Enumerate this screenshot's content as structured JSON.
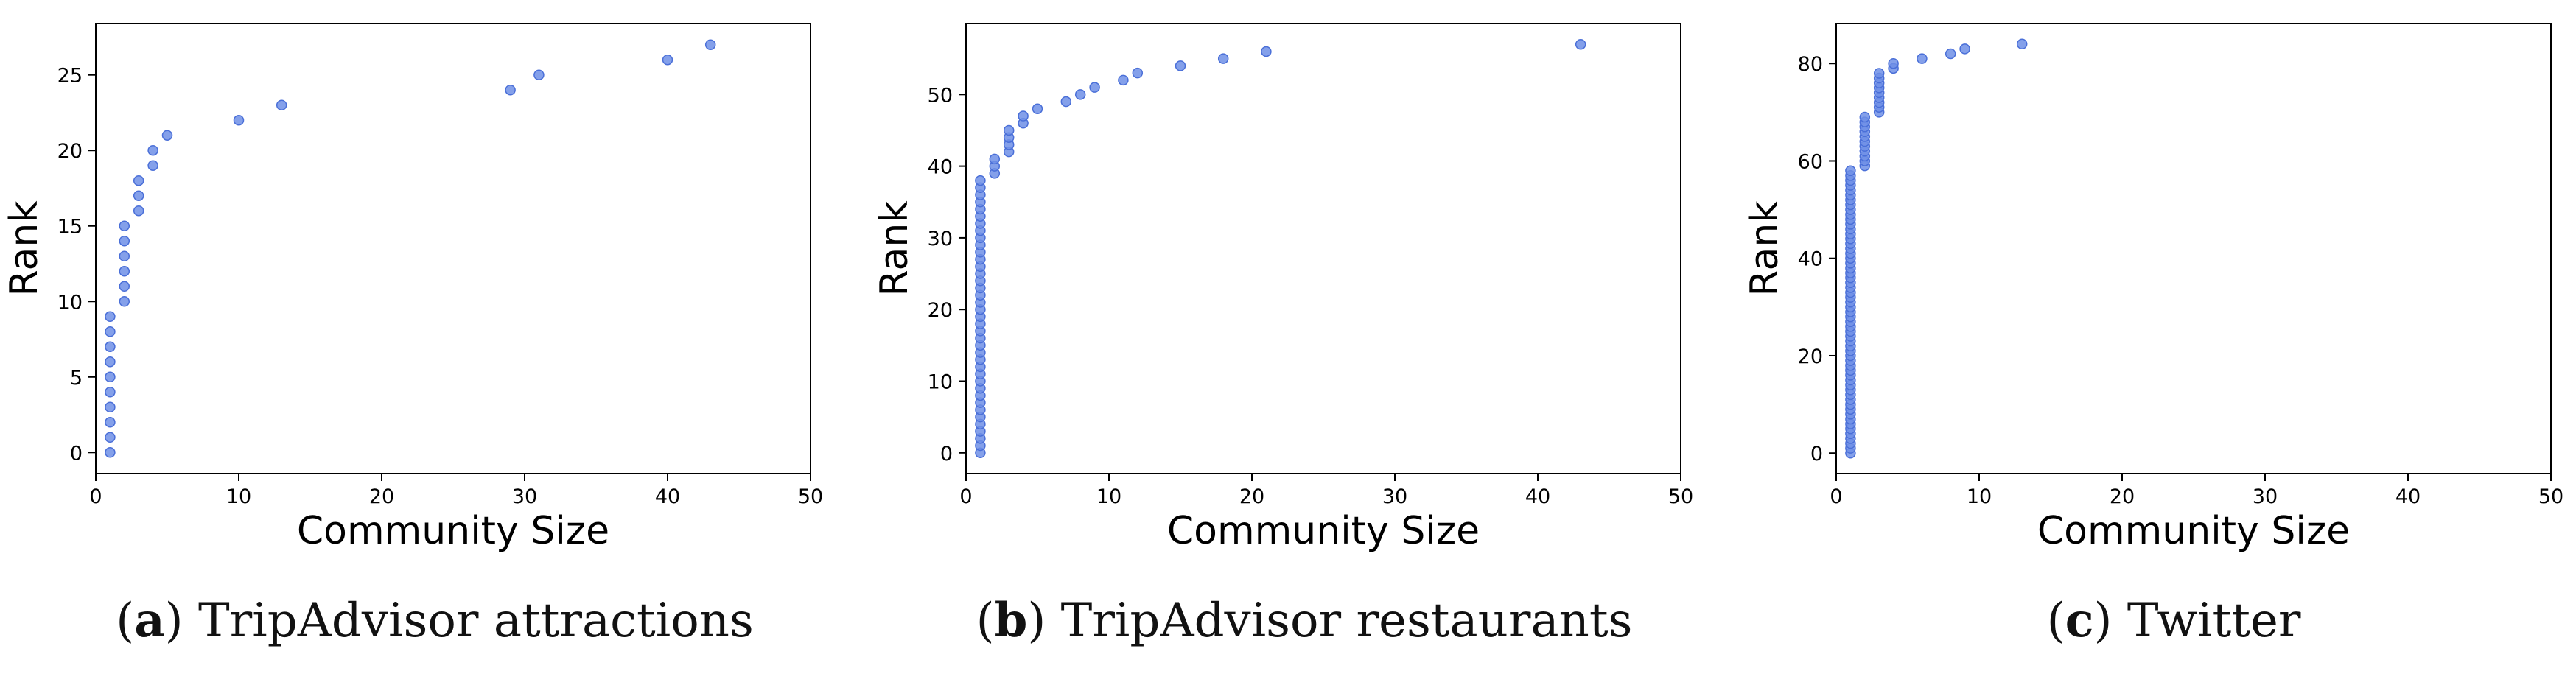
{
  "style": {
    "point_color": "#6f8fe6",
    "point_edge": "#4a6fd8",
    "axis_color": "#000000"
  },
  "chart_data": [
    {
      "type": "scatter",
      "xlabel": "Community Size",
      "ylabel": "Rank",
      "xlim": [
        0,
        50
      ],
      "ylim": [
        -1.4,
        28.4
      ],
      "xticks": [
        0,
        10,
        20,
        30,
        40,
        50
      ],
      "yticks": [
        0,
        5,
        10,
        15,
        20,
        25
      ],
      "grid": false,
      "caption": {
        "label": "a",
        "text": "TripAdvisor attractions"
      },
      "points": [
        [
          1,
          0
        ],
        [
          1,
          1
        ],
        [
          1,
          2
        ],
        [
          1,
          3
        ],
        [
          1,
          4
        ],
        [
          1,
          5
        ],
        [
          1,
          6
        ],
        [
          1,
          7
        ],
        [
          1,
          8
        ],
        [
          1,
          9
        ],
        [
          2,
          10
        ],
        [
          2,
          11
        ],
        [
          2,
          12
        ],
        [
          2,
          13
        ],
        [
          2,
          14
        ],
        [
          2,
          15
        ],
        [
          3,
          16
        ],
        [
          3,
          17
        ],
        [
          3,
          18
        ],
        [
          4,
          19
        ],
        [
          4,
          20
        ],
        [
          5,
          21
        ],
        [
          10,
          22
        ],
        [
          13,
          23
        ],
        [
          29,
          24
        ],
        [
          31,
          25
        ],
        [
          40,
          26
        ],
        [
          43,
          27
        ]
      ]
    },
    {
      "type": "scatter",
      "xlabel": "Community Size",
      "ylabel": "Rank",
      "xlim": [
        0,
        50
      ],
      "ylim": [
        -2.9,
        59.9
      ],
      "xticks": [
        0,
        10,
        20,
        30,
        40,
        50
      ],
      "yticks": [
        0,
        10,
        20,
        30,
        40,
        50
      ],
      "grid": false,
      "caption": {
        "label": "b",
        "text": "TripAdvisor restaurants"
      },
      "points": [
        [
          1,
          0
        ],
        [
          1,
          1
        ],
        [
          1,
          2
        ],
        [
          1,
          3
        ],
        [
          1,
          4
        ],
        [
          1,
          5
        ],
        [
          1,
          6
        ],
        [
          1,
          7
        ],
        [
          1,
          8
        ],
        [
          1,
          9
        ],
        [
          1,
          10
        ],
        [
          1,
          11
        ],
        [
          1,
          12
        ],
        [
          1,
          13
        ],
        [
          1,
          14
        ],
        [
          1,
          15
        ],
        [
          1,
          16
        ],
        [
          1,
          17
        ],
        [
          1,
          18
        ],
        [
          1,
          19
        ],
        [
          1,
          20
        ],
        [
          1,
          21
        ],
        [
          1,
          22
        ],
        [
          1,
          23
        ],
        [
          1,
          24
        ],
        [
          1,
          25
        ],
        [
          1,
          26
        ],
        [
          1,
          27
        ],
        [
          1,
          28
        ],
        [
          1,
          29
        ],
        [
          1,
          30
        ],
        [
          1,
          31
        ],
        [
          1,
          32
        ],
        [
          1,
          33
        ],
        [
          1,
          34
        ],
        [
          1,
          35
        ],
        [
          1,
          36
        ],
        [
          1,
          37
        ],
        [
          1,
          38
        ],
        [
          2,
          39
        ],
        [
          2,
          40
        ],
        [
          2,
          41
        ],
        [
          3,
          42
        ],
        [
          3,
          43
        ],
        [
          3,
          44
        ],
        [
          3,
          45
        ],
        [
          4,
          46
        ],
        [
          4,
          47
        ],
        [
          5,
          48
        ],
        [
          7,
          49
        ],
        [
          8,
          50
        ],
        [
          9,
          51
        ],
        [
          11,
          52
        ],
        [
          12,
          53
        ],
        [
          15,
          54
        ],
        [
          18,
          55
        ],
        [
          21,
          56
        ],
        [
          43,
          57
        ]
      ]
    },
    {
      "type": "scatter",
      "xlabel": "Community Size",
      "ylabel": "Rank",
      "xlim": [
        0,
        50
      ],
      "ylim": [
        -4.2,
        88.2
      ],
      "xticks": [
        0,
        10,
        20,
        30,
        40,
        50
      ],
      "yticks": [
        0,
        20,
        40,
        60,
        80
      ],
      "grid": false,
      "caption": {
        "label": "c",
        "text": "Twitter"
      },
      "points": [
        [
          1,
          0
        ],
        [
          1,
          1
        ],
        [
          1,
          2
        ],
        [
          1,
          3
        ],
        [
          1,
          4
        ],
        [
          1,
          5
        ],
        [
          1,
          6
        ],
        [
          1,
          7
        ],
        [
          1,
          8
        ],
        [
          1,
          9
        ],
        [
          1,
          10
        ],
        [
          1,
          11
        ],
        [
          1,
          12
        ],
        [
          1,
          13
        ],
        [
          1,
          14
        ],
        [
          1,
          15
        ],
        [
          1,
          16
        ],
        [
          1,
          17
        ],
        [
          1,
          18
        ],
        [
          1,
          19
        ],
        [
          1,
          20
        ],
        [
          1,
          21
        ],
        [
          1,
          22
        ],
        [
          1,
          23
        ],
        [
          1,
          24
        ],
        [
          1,
          25
        ],
        [
          1,
          26
        ],
        [
          1,
          27
        ],
        [
          1,
          28
        ],
        [
          1,
          29
        ],
        [
          1,
          30
        ],
        [
          1,
          31
        ],
        [
          1,
          32
        ],
        [
          1,
          33
        ],
        [
          1,
          34
        ],
        [
          1,
          35
        ],
        [
          1,
          36
        ],
        [
          1,
          37
        ],
        [
          1,
          38
        ],
        [
          1,
          39
        ],
        [
          1,
          40
        ],
        [
          1,
          41
        ],
        [
          1,
          42
        ],
        [
          1,
          43
        ],
        [
          1,
          44
        ],
        [
          1,
          45
        ],
        [
          1,
          46
        ],
        [
          1,
          47
        ],
        [
          1,
          48
        ],
        [
          1,
          49
        ],
        [
          1,
          50
        ],
        [
          1,
          51
        ],
        [
          1,
          52
        ],
        [
          1,
          53
        ],
        [
          1,
          54
        ],
        [
          1,
          55
        ],
        [
          1,
          56
        ],
        [
          1,
          57
        ],
        [
          1,
          58
        ],
        [
          2,
          59
        ],
        [
          2,
          60
        ],
        [
          2,
          61
        ],
        [
          2,
          62
        ],
        [
          2,
          63
        ],
        [
          2,
          64
        ],
        [
          2,
          65
        ],
        [
          2,
          66
        ],
        [
          2,
          67
        ],
        [
          2,
          68
        ],
        [
          2,
          69
        ],
        [
          3,
          70
        ],
        [
          3,
          71
        ],
        [
          3,
          72
        ],
        [
          3,
          73
        ],
        [
          3,
          74
        ],
        [
          3,
          75
        ],
        [
          3,
          76
        ],
        [
          3,
          77
        ],
        [
          3,
          78
        ],
        [
          4,
          79
        ],
        [
          4,
          80
        ],
        [
          6,
          81
        ],
        [
          8,
          82
        ],
        [
          9,
          83
        ],
        [
          13,
          84
        ]
      ]
    }
  ]
}
